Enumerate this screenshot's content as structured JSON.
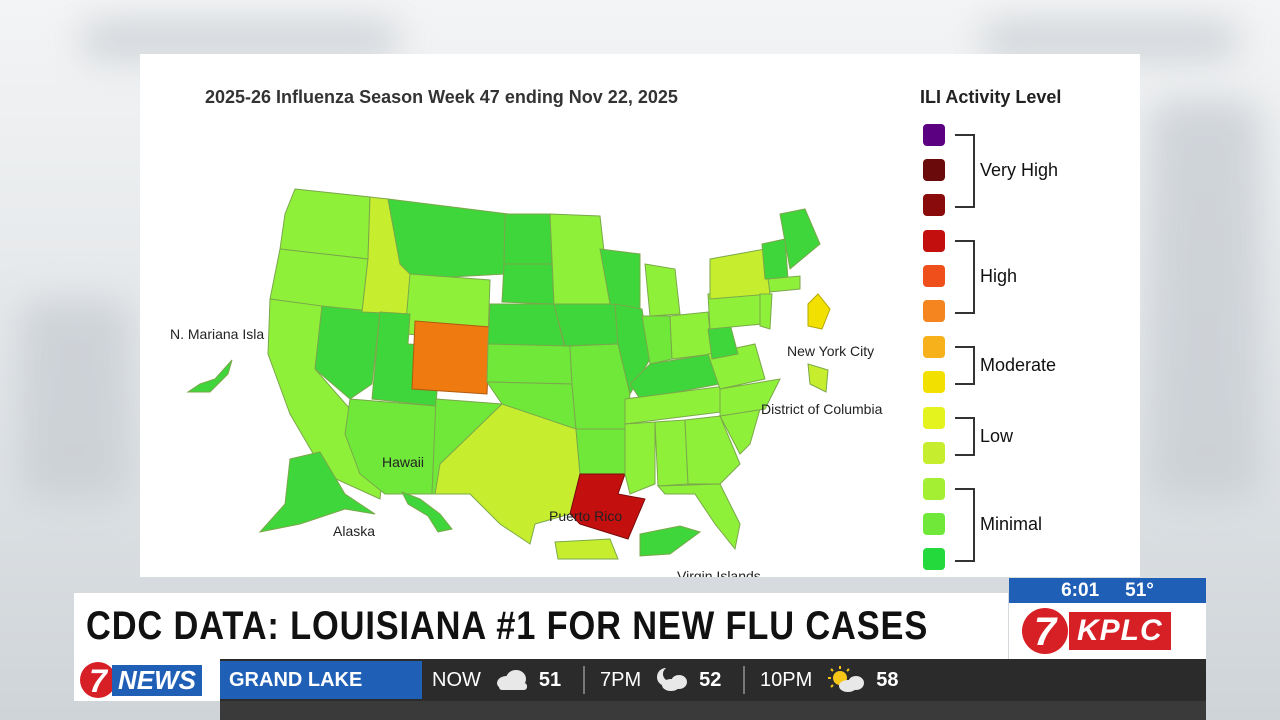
{
  "map": {
    "title": "2025-26 Influenza Season Week 47 ending Nov 22, 2025",
    "labels": {
      "mariana": "N. Mariana Isla",
      "nyc": "New York City",
      "dc": "District of Columbia",
      "hawaii": "Hawaii",
      "alaska": "Alaska",
      "puerto_rico": "Puerto Rico",
      "virgin_islands": "Virgin Islands"
    },
    "highlighted_states": {
      "colorado": "High",
      "louisiana": "Very High"
    }
  },
  "legend": {
    "title": "ILI Activity Level",
    "groups": [
      {
        "label": "Very High",
        "colors": [
          "#5b0080",
          "#6b0a0a",
          "#8a0b0b"
        ]
      },
      {
        "label": "High",
        "colors": [
          "#c40f0f",
          "#ef4f1b",
          "#f4851f"
        ]
      },
      {
        "label": "Moderate",
        "colors": [
          "#f7b21b",
          "#f2e100"
        ]
      },
      {
        "label": "Low",
        "colors": [
          "#e4f21d",
          "#c6ee2e"
        ]
      },
      {
        "label": "Minimal",
        "colors": [
          "#a4ef34",
          "#6fe83a",
          "#23d93b"
        ]
      }
    ]
  },
  "lower_third": {
    "headline": "CDC DATA: LOUISIANA #1 FOR NEW FLU CASES",
    "time": "6:01",
    "temp": "51°",
    "station": "KPLC",
    "station_number": "7",
    "news_label": "NEWS",
    "location": "GRAND LAKE",
    "weather": [
      {
        "label": "NOW",
        "icon": "cloud-icon",
        "temp": "51"
      },
      {
        "label": "7PM",
        "icon": "moon-cloud-icon",
        "temp": "52"
      },
      {
        "label": "10PM",
        "icon": "sun-cloud-icon",
        "temp": "58"
      }
    ]
  },
  "colors": {
    "brand_blue": "#1f5fb6",
    "brand_red": "#d71f26"
  }
}
